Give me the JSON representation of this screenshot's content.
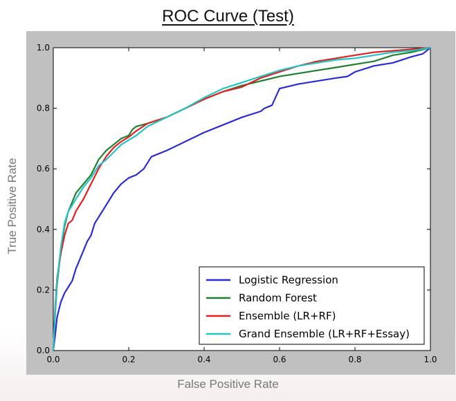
{
  "page": {
    "title": "ROC Curve (Test)"
  },
  "chart_data": {
    "type": "line",
    "title": "ROC Curve (Test)",
    "xlabel": "False Positive Rate",
    "ylabel": "True Positive Rate",
    "xlim": [
      0.0,
      1.0
    ],
    "ylim": [
      0.0,
      1.0
    ],
    "xticks": [
      "0.0",
      "0.2",
      "0.4",
      "0.6",
      "0.8",
      "1.0"
    ],
    "yticks": [
      "0.0",
      "0.2",
      "0.4",
      "0.6",
      "0.8",
      "1.0"
    ],
    "grid": false,
    "legend_position": "bottom-right",
    "series": [
      {
        "name": "Logistic Regression",
        "color": "#2b2bd6",
        "x": [
          0.0,
          0.005,
          0.01,
          0.02,
          0.03,
          0.04,
          0.05,
          0.06,
          0.07,
          0.08,
          0.09,
          0.1,
          0.11,
          0.12,
          0.13,
          0.14,
          0.15,
          0.16,
          0.18,
          0.2,
          0.22,
          0.24,
          0.25,
          0.26,
          0.3,
          0.35,
          0.4,
          0.45,
          0.5,
          0.55,
          0.56,
          0.58,
          0.6,
          0.65,
          0.7,
          0.75,
          0.78,
          0.8,
          0.85,
          0.9,
          0.95,
          0.98,
          1.0
        ],
        "y": [
          0.0,
          0.05,
          0.11,
          0.16,
          0.19,
          0.21,
          0.23,
          0.27,
          0.3,
          0.33,
          0.36,
          0.38,
          0.42,
          0.44,
          0.46,
          0.48,
          0.5,
          0.52,
          0.55,
          0.57,
          0.58,
          0.6,
          0.62,
          0.64,
          0.66,
          0.69,
          0.72,
          0.745,
          0.77,
          0.79,
          0.8,
          0.81,
          0.865,
          0.88,
          0.89,
          0.9,
          0.905,
          0.92,
          0.94,
          0.95,
          0.97,
          0.98,
          1.0
        ]
      },
      {
        "name": "Random Forest",
        "color": "#1f7f2f",
        "x": [
          0.0,
          0.005,
          0.01,
          0.02,
          0.03,
          0.04,
          0.05,
          0.06,
          0.08,
          0.1,
          0.12,
          0.14,
          0.16,
          0.18,
          0.2,
          0.21,
          0.22,
          0.25,
          0.3,
          0.35,
          0.4,
          0.45,
          0.5,
          0.55,
          0.6,
          0.65,
          0.7,
          0.75,
          0.8,
          0.85,
          0.9,
          0.95,
          1.0
        ],
        "y": [
          0.0,
          0.12,
          0.22,
          0.33,
          0.41,
          0.46,
          0.49,
          0.52,
          0.55,
          0.58,
          0.63,
          0.66,
          0.68,
          0.7,
          0.71,
          0.73,
          0.74,
          0.75,
          0.77,
          0.8,
          0.83,
          0.855,
          0.875,
          0.89,
          0.905,
          0.915,
          0.925,
          0.935,
          0.945,
          0.955,
          0.975,
          0.985,
          1.0
        ]
      },
      {
        "name": "Ensemble (LR+RF)",
        "color": "#e02020",
        "x": [
          0.0,
          0.005,
          0.01,
          0.02,
          0.03,
          0.04,
          0.05,
          0.06,
          0.08,
          0.1,
          0.12,
          0.14,
          0.16,
          0.18,
          0.2,
          0.22,
          0.25,
          0.3,
          0.35,
          0.4,
          0.45,
          0.5,
          0.55,
          0.6,
          0.65,
          0.7,
          0.75,
          0.8,
          0.85,
          0.9,
          0.95,
          1.0
        ],
        "y": [
          0.0,
          0.14,
          0.24,
          0.32,
          0.38,
          0.42,
          0.43,
          0.46,
          0.5,
          0.55,
          0.6,
          0.64,
          0.67,
          0.69,
          0.705,
          0.725,
          0.75,
          0.77,
          0.8,
          0.83,
          0.855,
          0.87,
          0.9,
          0.92,
          0.94,
          0.955,
          0.965,
          0.975,
          0.985,
          0.99,
          0.995,
          1.0
        ]
      },
      {
        "name": "Grand Ensemble (LR+RF+Essay)",
        "color": "#22c4c4",
        "x": [
          0.0,
          0.005,
          0.01,
          0.02,
          0.03,
          0.04,
          0.05,
          0.06,
          0.08,
          0.1,
          0.12,
          0.14,
          0.16,
          0.18,
          0.2,
          0.22,
          0.25,
          0.3,
          0.35,
          0.4,
          0.45,
          0.5,
          0.55,
          0.6,
          0.65,
          0.7,
          0.75,
          0.8,
          0.85,
          0.9,
          0.95,
          1.0
        ],
        "y": [
          0.0,
          0.13,
          0.23,
          0.34,
          0.42,
          0.46,
          0.48,
          0.5,
          0.54,
          0.57,
          0.61,
          0.63,
          0.655,
          0.68,
          0.695,
          0.71,
          0.74,
          0.77,
          0.8,
          0.835,
          0.865,
          0.885,
          0.905,
          0.925,
          0.94,
          0.95,
          0.96,
          0.965,
          0.975,
          0.985,
          0.99,
          1.0
        ]
      }
    ]
  }
}
